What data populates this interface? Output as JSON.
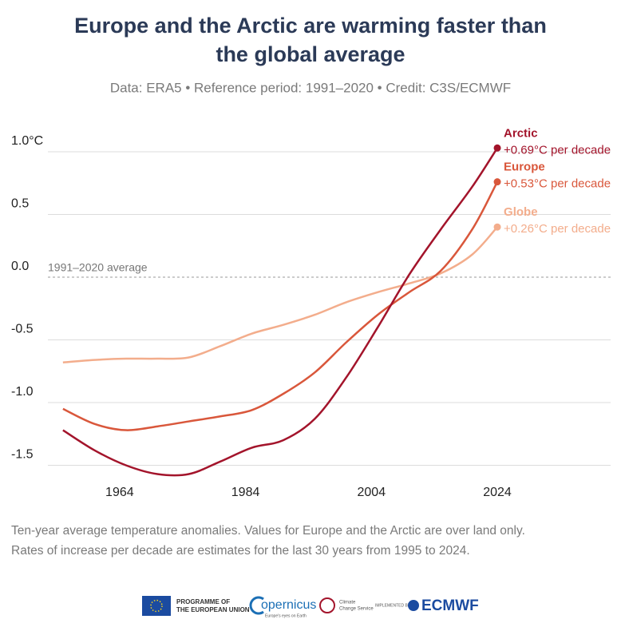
{
  "chart_data": {
    "type": "line",
    "title": [
      "Europe and the Arctic are warming faster than",
      "the global average"
    ],
    "subtitle": "Data: ERA5 • Reference period: 1991–2020 • Credit: C3S/ECMWF",
    "x": [
      1955,
      1960,
      1965,
      1970,
      1975,
      1980,
      1985,
      1990,
      1995,
      2000,
      2005,
      2010,
      2015,
      2020,
      2024
    ],
    "series": [
      {
        "name": "Globe",
        "color": "#f3ad8c",
        "rate_label": "+0.26°C per decade",
        "values": [
          -0.68,
          -0.66,
          -0.65,
          -0.65,
          -0.64,
          -0.55,
          -0.45,
          -0.38,
          -0.3,
          -0.2,
          -0.12,
          -0.05,
          0.03,
          0.18,
          0.4
        ]
      },
      {
        "name": "Europe",
        "color": "#d9573b",
        "rate_label": "+0.53°C per decade",
        "values": [
          -1.05,
          -1.17,
          -1.22,
          -1.19,
          -1.15,
          -1.11,
          -1.06,
          -0.93,
          -0.76,
          -0.52,
          -0.3,
          -0.12,
          0.05,
          0.38,
          0.76
        ]
      },
      {
        "name": "Arctic",
        "color": "#a3142b",
        "rate_label": "+0.69°C per decade",
        "values": [
          -1.22,
          -1.38,
          -1.5,
          -1.57,
          -1.57,
          -1.47,
          -1.36,
          -1.3,
          -1.13,
          -0.8,
          -0.4,
          0.02,
          0.38,
          0.72,
          1.03
        ]
      }
    ],
    "xlim": [
      1945,
      2042
    ],
    "xticks": [
      1964,
      1984,
      2004,
      2024
    ],
    "ylim": [
      -1.6,
      1.2
    ],
    "yticks": [
      {
        "value": 1,
        "label": "1.0°C"
      },
      0.5,
      {
        "value": 0,
        "label": "0.0"
      },
      -0.5,
      {
        "value": -1,
        "label": "-1.0"
      },
      -1.5
    ],
    "grid": true,
    "reference_line": {
      "value": 0,
      "label": "1991–2020 average"
    },
    "footnote": [
      "Ten-year average temperature anomalies. Values for Europe and the Arctic are over land only.",
      "Rates of increase per decade are estimates for the last 30 years from 1995 to 2024."
    ],
    "logos": {
      "eu": [
        "PROGRAMME OF",
        "THE EUROPEAN UNION"
      ],
      "copernicus": "opernicus",
      "copernicus_tag": "Europe's eyes on Earth",
      "c3s": [
        "Climate",
        "Change Service"
      ],
      "implemented": "IMPLEMENTED BY",
      "ecmwf": "ECMWF"
    }
  }
}
